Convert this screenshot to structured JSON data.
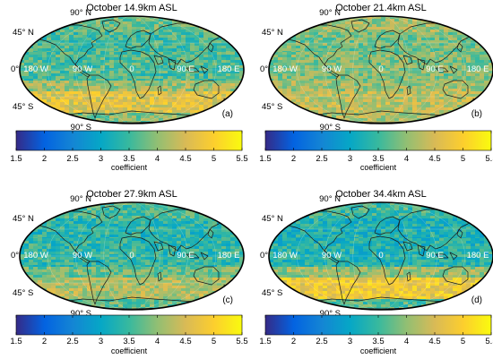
{
  "figure": {
    "colorbar": {
      "label": "coefficient",
      "ticks": [
        "1.5",
        "2",
        "2.5",
        "3",
        "3.5",
        "4",
        "4.5",
        "5",
        "5.5"
      ],
      "range": [
        1.5,
        5.5
      ],
      "colormap": "parula",
      "colors": [
        "#352a87",
        "#0363e1",
        "#1485d4",
        "#06a7c6",
        "#38b99e",
        "#92bf73",
        "#d9ba56",
        "#fcce2e",
        "#f9fb0e"
      ]
    },
    "graticule_labels": {
      "lat_90n": "90° N",
      "lat_45n": "45° N",
      "lat_0": "0°",
      "lat_45s": "45° S",
      "lat_90s": "90° S",
      "lon_180w": "180 W",
      "lon_90w": "90 W",
      "lon_0": "0",
      "lon_90e": "90 E",
      "lon_180e": "180 E"
    },
    "panels": [
      {
        "title": "October 14.9km ASL",
        "tag": "(a)",
        "dominant_value": 3.6,
        "southern_value": 4.6
      },
      {
        "title": "October 21.4km ASL",
        "tag": "(b)",
        "dominant_value": 3.9,
        "southern_value": 4.3
      },
      {
        "title": "October 27.9km ASL",
        "tag": "(c)",
        "dominant_value": 3.4,
        "southern_value": 4.2
      },
      {
        "title": "October 34.4km ASL",
        "tag": "(d)",
        "dominant_value": 3.3,
        "southern_value": 4.8
      }
    ]
  }
}
